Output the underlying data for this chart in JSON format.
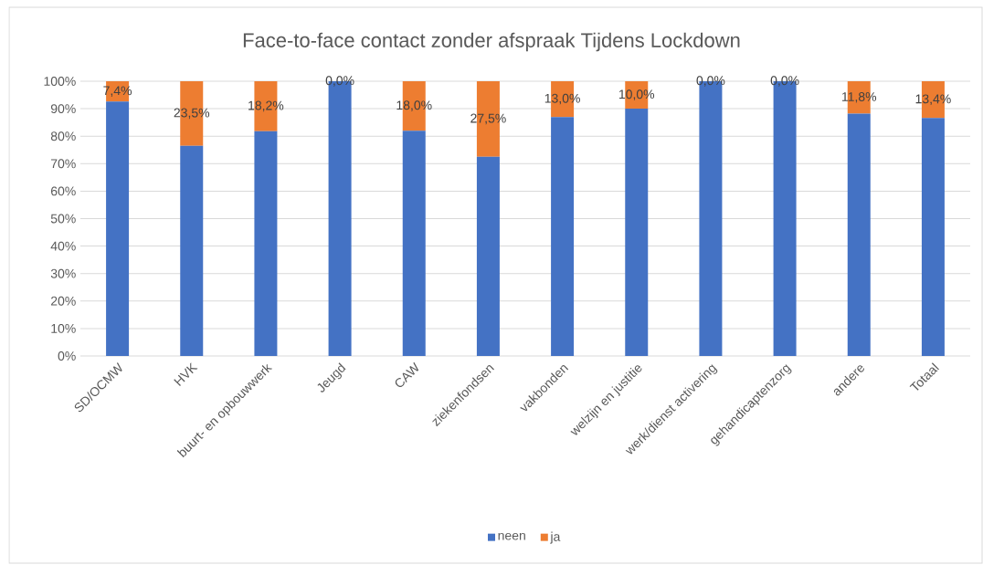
{
  "chart_data": {
    "type": "bar",
    "stacked": true,
    "title": "Face-to-face contact zonder afspraak Tijdens Lockdown",
    "categories": [
      "SD/OCMW",
      "HVK",
      "buurt- en opbouwwerk",
      "Jeugd",
      "CAW",
      "ziekenfondsen",
      "vakbonden",
      "welzijn en justitie",
      "werk/dienst activering",
      "gehandicaptenzorg",
      "andere",
      "Totaal"
    ],
    "series": [
      {
        "name": "neen",
        "color": "#4472c4",
        "values": [
          92.6,
          76.5,
          81.8,
          100,
          82.0,
          72.5,
          87.0,
          90.0,
          100,
          100,
          88.2,
          86.6
        ]
      },
      {
        "name": "ja",
        "color": "#ed7d31",
        "values": [
          7.4,
          23.5,
          18.2,
          0,
          18.0,
          27.5,
          13.0,
          10.0,
          0,
          0,
          11.8,
          13.4
        ],
        "value_labels": [
          "7,4%",
          "23,5%",
          "18,2%",
          "0,0%",
          "18,0%",
          "27,5%",
          "13,0%",
          "10,0%",
          "0,0%",
          "0,0%",
          "11,8%",
          "13,4%"
        ]
      }
    ],
    "ylim": [
      0,
      100
    ],
    "yticks": [
      {
        "value": 0,
        "label": "0%"
      },
      {
        "value": 10,
        "label": "10%"
      },
      {
        "value": 20,
        "label": "20%"
      },
      {
        "value": 30,
        "label": "30%"
      },
      {
        "value": 40,
        "label": "40%"
      },
      {
        "value": 50,
        "label": "50%"
      },
      {
        "value": 60,
        "label": "60%"
      },
      {
        "value": 70,
        "label": "70%"
      },
      {
        "value": 80,
        "label": "80%"
      },
      {
        "value": 90,
        "label": "90%"
      },
      {
        "value": 100,
        "label": "100%"
      }
    ],
    "grid": "y",
    "legend": "bottom"
  }
}
